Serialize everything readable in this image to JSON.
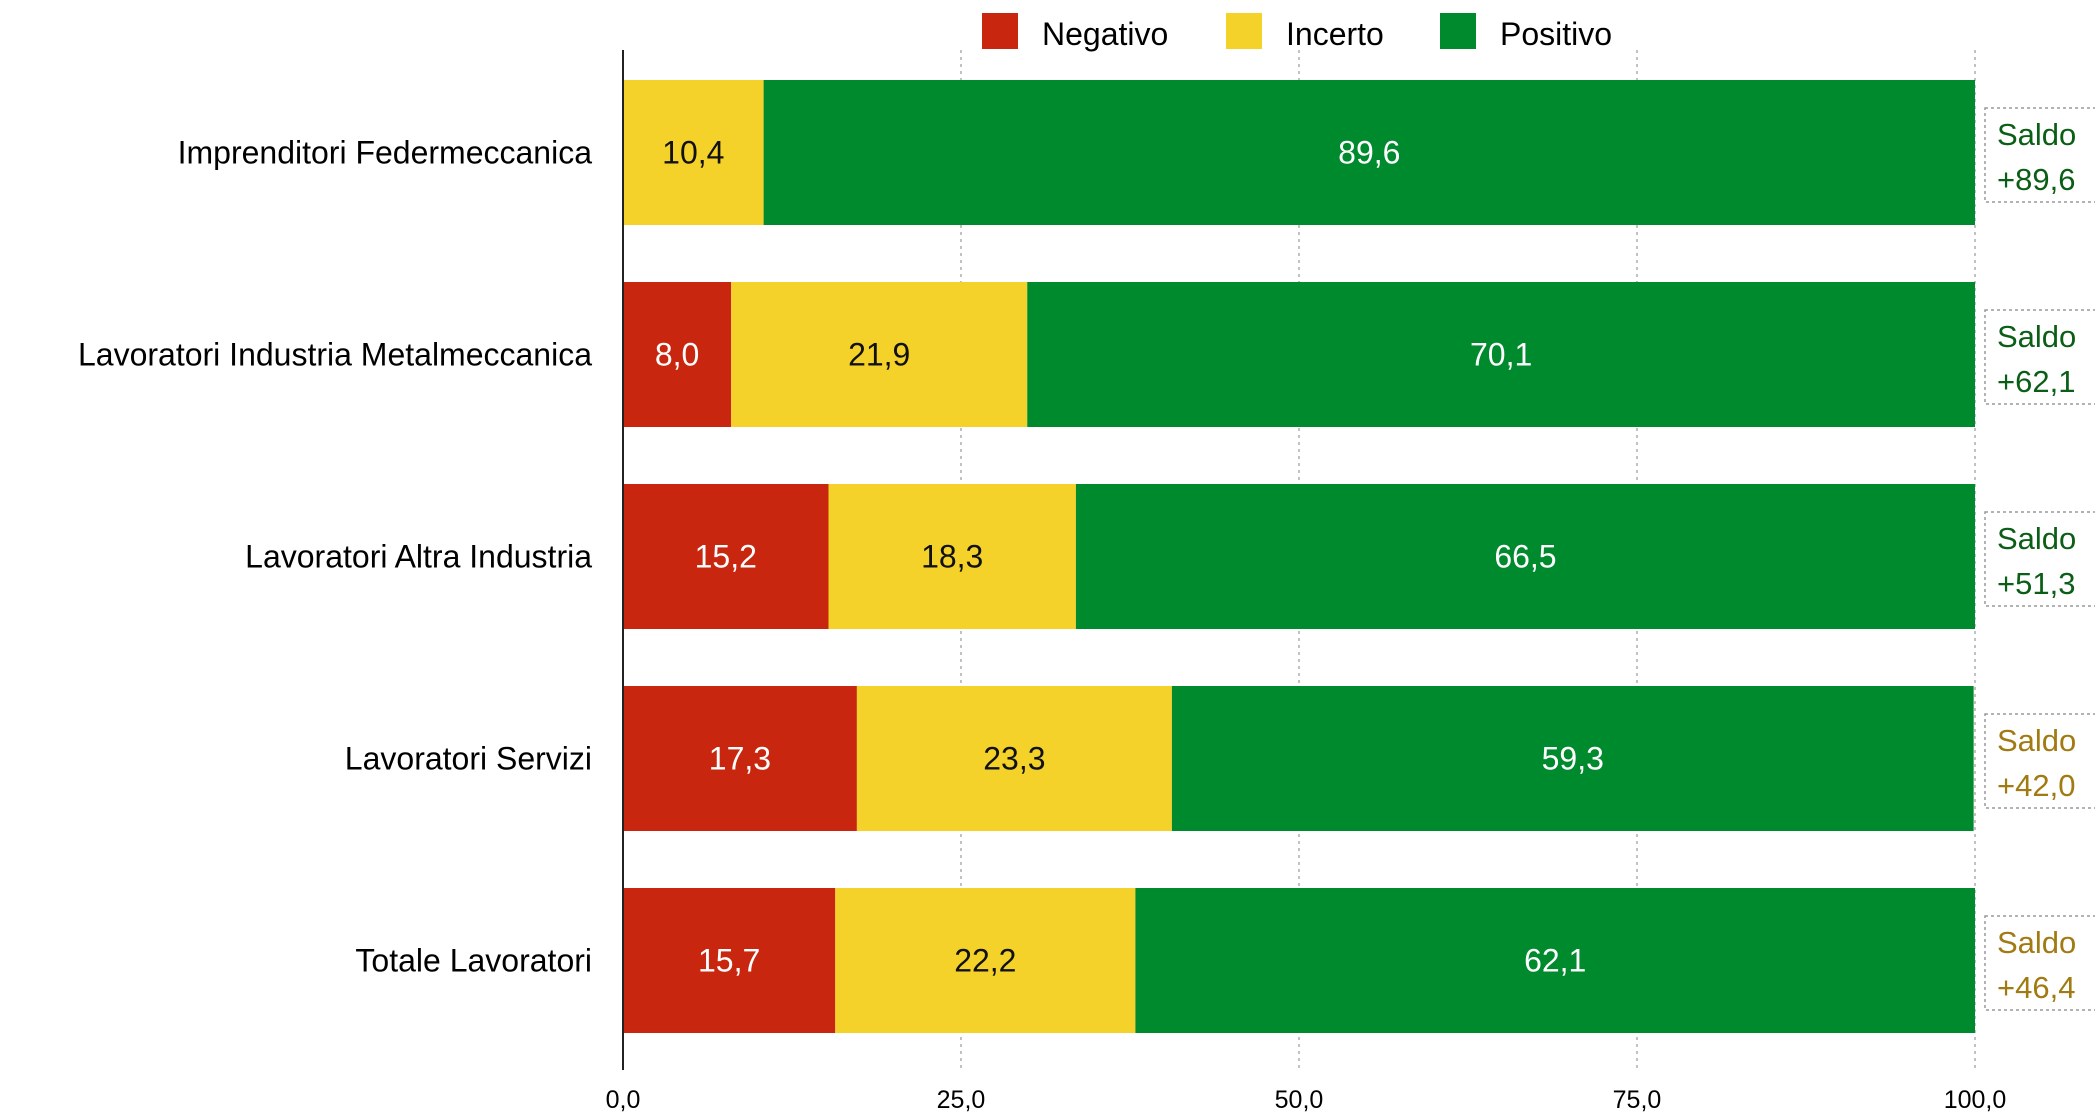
{
  "chart_data": {
    "type": "bar",
    "orientation": "horizontal",
    "stacked": true,
    "categories": [
      "Imprenditori Federmeccanica",
      "Lavoratori Industria Metalmeccanica",
      "Lavoratori Altra Industria",
      "Lavoratori Servizi",
      "Totale Lavoratori"
    ],
    "series": [
      {
        "name": "Negativo",
        "color": "#c8260e",
        "values": [
          0,
          8.0,
          15.2,
          17.3,
          15.7
        ],
        "labels": [
          "",
          "8,0",
          "15,2",
          "17,3",
          "15,7"
        ]
      },
      {
        "name": "Incerto",
        "color": "#f5d22a",
        "values": [
          10.4,
          21.9,
          18.3,
          23.3,
          22.2
        ],
        "labels": [
          "10,4",
          "21,9",
          "18,3",
          "23,3",
          "22,2"
        ]
      },
      {
        "name": "Positivo",
        "color": "#008a2e",
        "values": [
          89.6,
          70.1,
          66.5,
          59.3,
          62.1
        ],
        "labels": [
          "89,6",
          "70,1",
          "66,5",
          "59,3",
          "62,1"
        ]
      }
    ],
    "xlim": [
      0,
      100
    ],
    "xticks": [
      "0,0",
      "25,0",
      "50,0",
      "75,0",
      "100,0"
    ],
    "grid": "vertical dashed",
    "legend_position": "top",
    "saldo": [
      {
        "label": "Saldo",
        "value": "+89,6",
        "color": "#0b5e16"
      },
      {
        "label": "Saldo",
        "value": "+62,1",
        "color": "#0b5e16"
      },
      {
        "label": "Saldo",
        "value": "+51,3",
        "color": "#0b5e16"
      },
      {
        "label": "Saldo",
        "value": "+42,0",
        "color": "#a27a12"
      },
      {
        "label": "Saldo",
        "value": "+46,4",
        "color": "#a27a12"
      }
    ]
  }
}
